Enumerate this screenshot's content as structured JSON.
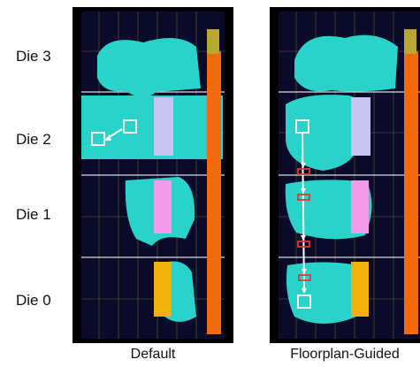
{
  "dies": [
    "Die 3",
    "Die 2",
    "Die 1",
    "Die 0"
  ],
  "panels": [
    {
      "caption": "Default"
    },
    {
      "caption": "Floorplan-Guided"
    }
  ],
  "colors": {
    "background": "#0a0a2a",
    "logic": "#29d3c9",
    "sll_column": "#f26a0d",
    "bram_purple": "#c9c4f2",
    "bram_pink": "#f29be8",
    "bram_yellow": "#f2b10d",
    "grid": "#b8a832",
    "arrow": "#ffffff",
    "crossing": "#e0392e"
  }
}
